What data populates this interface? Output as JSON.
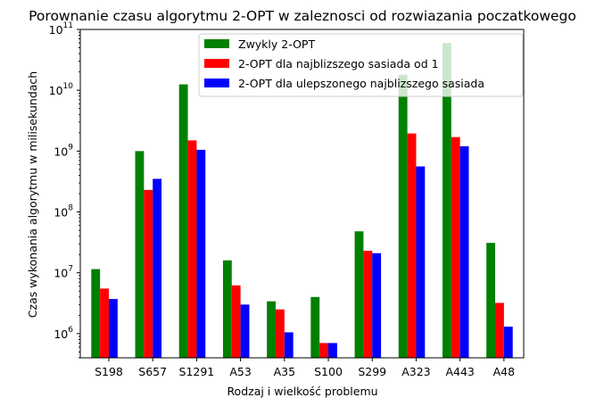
{
  "chart_data": {
    "type": "bar",
    "title": "Porownanie czasu algorytmu 2-OPT w zaleznosci od rozwiazania poczatkowego",
    "xlabel": "Rodzaj i wielkość problemu",
    "ylabel": "Czas wykonania algorytmu w milisekundach",
    "yscale": "log",
    "ylim": [
      400000,
      100000000000
    ],
    "yticks": [
      {
        "value": 1000000,
        "base": "10",
        "exp": "6"
      },
      {
        "value": 10000000,
        "base": "10",
        "exp": "7"
      },
      {
        "value": 100000000,
        "base": "10",
        "exp": "8"
      },
      {
        "value": 1000000000,
        "base": "10",
        "exp": "9"
      },
      {
        "value": 10000000000,
        "base": "10",
        "exp": "10"
      },
      {
        "value": 100000000000,
        "base": "10",
        "exp": "11"
      }
    ],
    "categories": [
      "S198",
      "S657",
      "S1291",
      "A53",
      "A35",
      "S100",
      "S299",
      "A323",
      "A443",
      "A48"
    ],
    "series": [
      {
        "name": "Zwykly 2-OPT",
        "color": "#008000",
        "values": [
          11500000,
          1000000000,
          12500000000,
          16000000,
          3400000,
          4000000,
          48000000,
          18000000000,
          60000000000,
          31000000
        ]
      },
      {
        "name": "2-OPT dla najblizszego sasiada od 1",
        "color": "#ff0000",
        "values": [
          5500000,
          230000000,
          1500000000,
          6200000,
          2500000,
          700000,
          23000000,
          1950000000,
          1700000000,
          3200000
        ]
      },
      {
        "name": "2-OPT dla ulepszonego najblizszego sasiada",
        "color": "#0000ff",
        "values": [
          3700000,
          350000000,
          1050000000,
          3000000,
          1050000,
          700000,
          21000000,
          560000000,
          1200000000,
          1300000
        ]
      }
    ],
    "legend": "top-center",
    "grid": false
  }
}
